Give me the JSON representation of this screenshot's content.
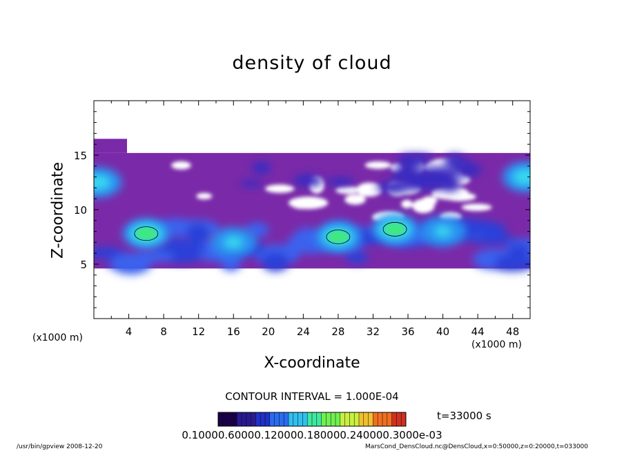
{
  "chart_data": {
    "type": "heatmap",
    "title": "density of cloud",
    "xlabel": "X-coordinate",
    "ylabel": "Z-coordinate",
    "x_unit": "(x1000 m)",
    "xlim": [
      0,
      50
    ],
    "ylim": [
      0,
      20
    ],
    "x_ticks": [
      "4",
      "8",
      "12",
      "16",
      "20",
      "24",
      "28",
      "32",
      "36",
      "40",
      "44",
      "48"
    ],
    "y_ticks": [
      "5",
      "10",
      "15"
    ],
    "contour_interval": "CONTOUR INTERVAL = 1.000E-04",
    "time": "t=33000 s",
    "colorbar_labels": "0.10000.60000.120000.180000.240000.3000e-03",
    "colorbar_colors": [
      "#1a0048",
      "#2a1a90",
      "#2030c8",
      "#2a6cf0",
      "#30c0f0",
      "#40e8a0",
      "#70f050",
      "#c8f040",
      "#f0c030",
      "#f07020",
      "#d03020"
    ],
    "cloud_layer": {
      "z_bottom": 4.6,
      "z_top": 15.2
    },
    "density_features": [
      {
        "x": 0.5,
        "z": 12.5,
        "level": 0.75
      },
      {
        "x": 6.0,
        "z": 7.8,
        "level": 1.0
      },
      {
        "x": 28.0,
        "z": 7.5,
        "level": 0.95
      },
      {
        "x": 34.5,
        "z": 8.2,
        "level": 1.0
      },
      {
        "x": 49.5,
        "z": 13.0,
        "level": 0.8
      },
      {
        "x": 16.0,
        "z": 7.0,
        "level": 0.6
      },
      {
        "x": 40.0,
        "z": 8.0,
        "level": 0.55
      }
    ]
  },
  "footer": {
    "left": "/usr/bin/gpview   2008-12-20",
    "right": "MarsCond_DensCloud.nc@DensCloud,x=0:50000,z=0:20000,t=033000"
  }
}
